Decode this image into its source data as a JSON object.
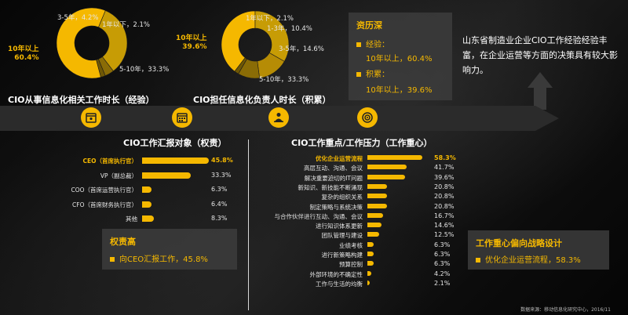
{
  "colors": {
    "accent": "#f5b800",
    "dark_slice": "#a98409",
    "mid_slice": "#c79c05",
    "bar": "#f5b800"
  },
  "icons": [
    "calendar-person-icon",
    "calendar-icon",
    "presenter-icon",
    "target-icon"
  ],
  "summary_note": "山东省制造业企业CIO工作经验经验丰富，在企业运营等方面的决策具有较大影响力。",
  "source": "数据来源：移动信息化研究中心，2016/11",
  "experience_box": {
    "title": "资历深",
    "line1_label": "经验：",
    "line1_value": "10年以上，60.4%",
    "line2_label": "积累：",
    "line2_value": "10年以上，39.6%"
  },
  "authority_box": {
    "title": "权责高",
    "line": "向CEO汇报工作，45.8%"
  },
  "focus_box": {
    "title": "工作重心偏向战略设计",
    "line": "优化企业运营流程，58.3%"
  },
  "chart_data": [
    {
      "type": "pie",
      "title": "CIO从事信息化相关工作时长（经验）",
      "labels": [
        "10年以上，60.4%",
        "5-10年，33.3%",
        "3-5年，4.2%",
        "1年以下，2.1%"
      ],
      "categories": [
        "10年以上",
        "5-10年",
        "3-5年",
        "1年以下"
      ],
      "values": [
        60.4,
        33.3,
        4.2,
        2.1
      ],
      "donut": true
    },
    {
      "type": "pie",
      "title": "CIO担任信息化负责人时长（积累）",
      "labels": [
        "10年以上，39.6%",
        "5-10年，33.3%",
        "3-5年，14.6%",
        "1-3年，10.4%",
        "1年以下，2.1%"
      ],
      "categories": [
        "10年以上",
        "5-10年",
        "3-5年",
        "1-3年",
        "1年以下"
      ],
      "values": [
        39.6,
        33.3,
        14.6,
        10.4,
        2.1
      ],
      "donut": true
    },
    {
      "type": "bar",
      "orientation": "horizontal",
      "title": "CIO工作汇报对象（权责）",
      "categories": [
        "CEO（首席执行官）",
        "VP（副总裁）",
        "COO（首席运营执行官）",
        "CFO（首席财务执行官）",
        "其他"
      ],
      "value_labels": [
        "45.8%",
        "33.3%",
        "6.3%",
        "6.4%",
        "8.3%"
      ],
      "values": [
        45.8,
        33.3,
        6.3,
        6.4,
        8.3
      ],
      "xlim": [
        0,
        50
      ]
    },
    {
      "type": "bar",
      "orientation": "horizontal",
      "title": "CIO工作重点/工作压力（工作重心）",
      "categories": [
        "优化企业运营流程",
        "高层互动、沟通、会议",
        "解决重要迫切的IT问题",
        "新知识、新技能不断涌现",
        "复杂的组织关系",
        "制定策略与系统决策",
        "与合作伙伴进行互动、沟通、会议",
        "进行知识体系更新",
        "团队管理与建设",
        "业绩考核",
        "进行新策略构建",
        "预算控制",
        "外部环境的不确定性",
        "工作与生活的均衡"
      ],
      "value_labels": [
        "58.3%",
        "41.7%",
        "39.6%",
        "20.8%",
        "20.8%",
        "20.8%",
        "16.7%",
        "14.6%",
        "12.5%",
        "6.3%",
        "6.3%",
        "6.3%",
        "4.2%",
        "2.1%"
      ],
      "values": [
        58.3,
        41.7,
        39.6,
        20.8,
        20.8,
        20.8,
        16.7,
        14.6,
        12.5,
        6.3,
        6.3,
        6.3,
        4.2,
        2.1
      ],
      "xlim": [
        0,
        60
      ]
    }
  ]
}
